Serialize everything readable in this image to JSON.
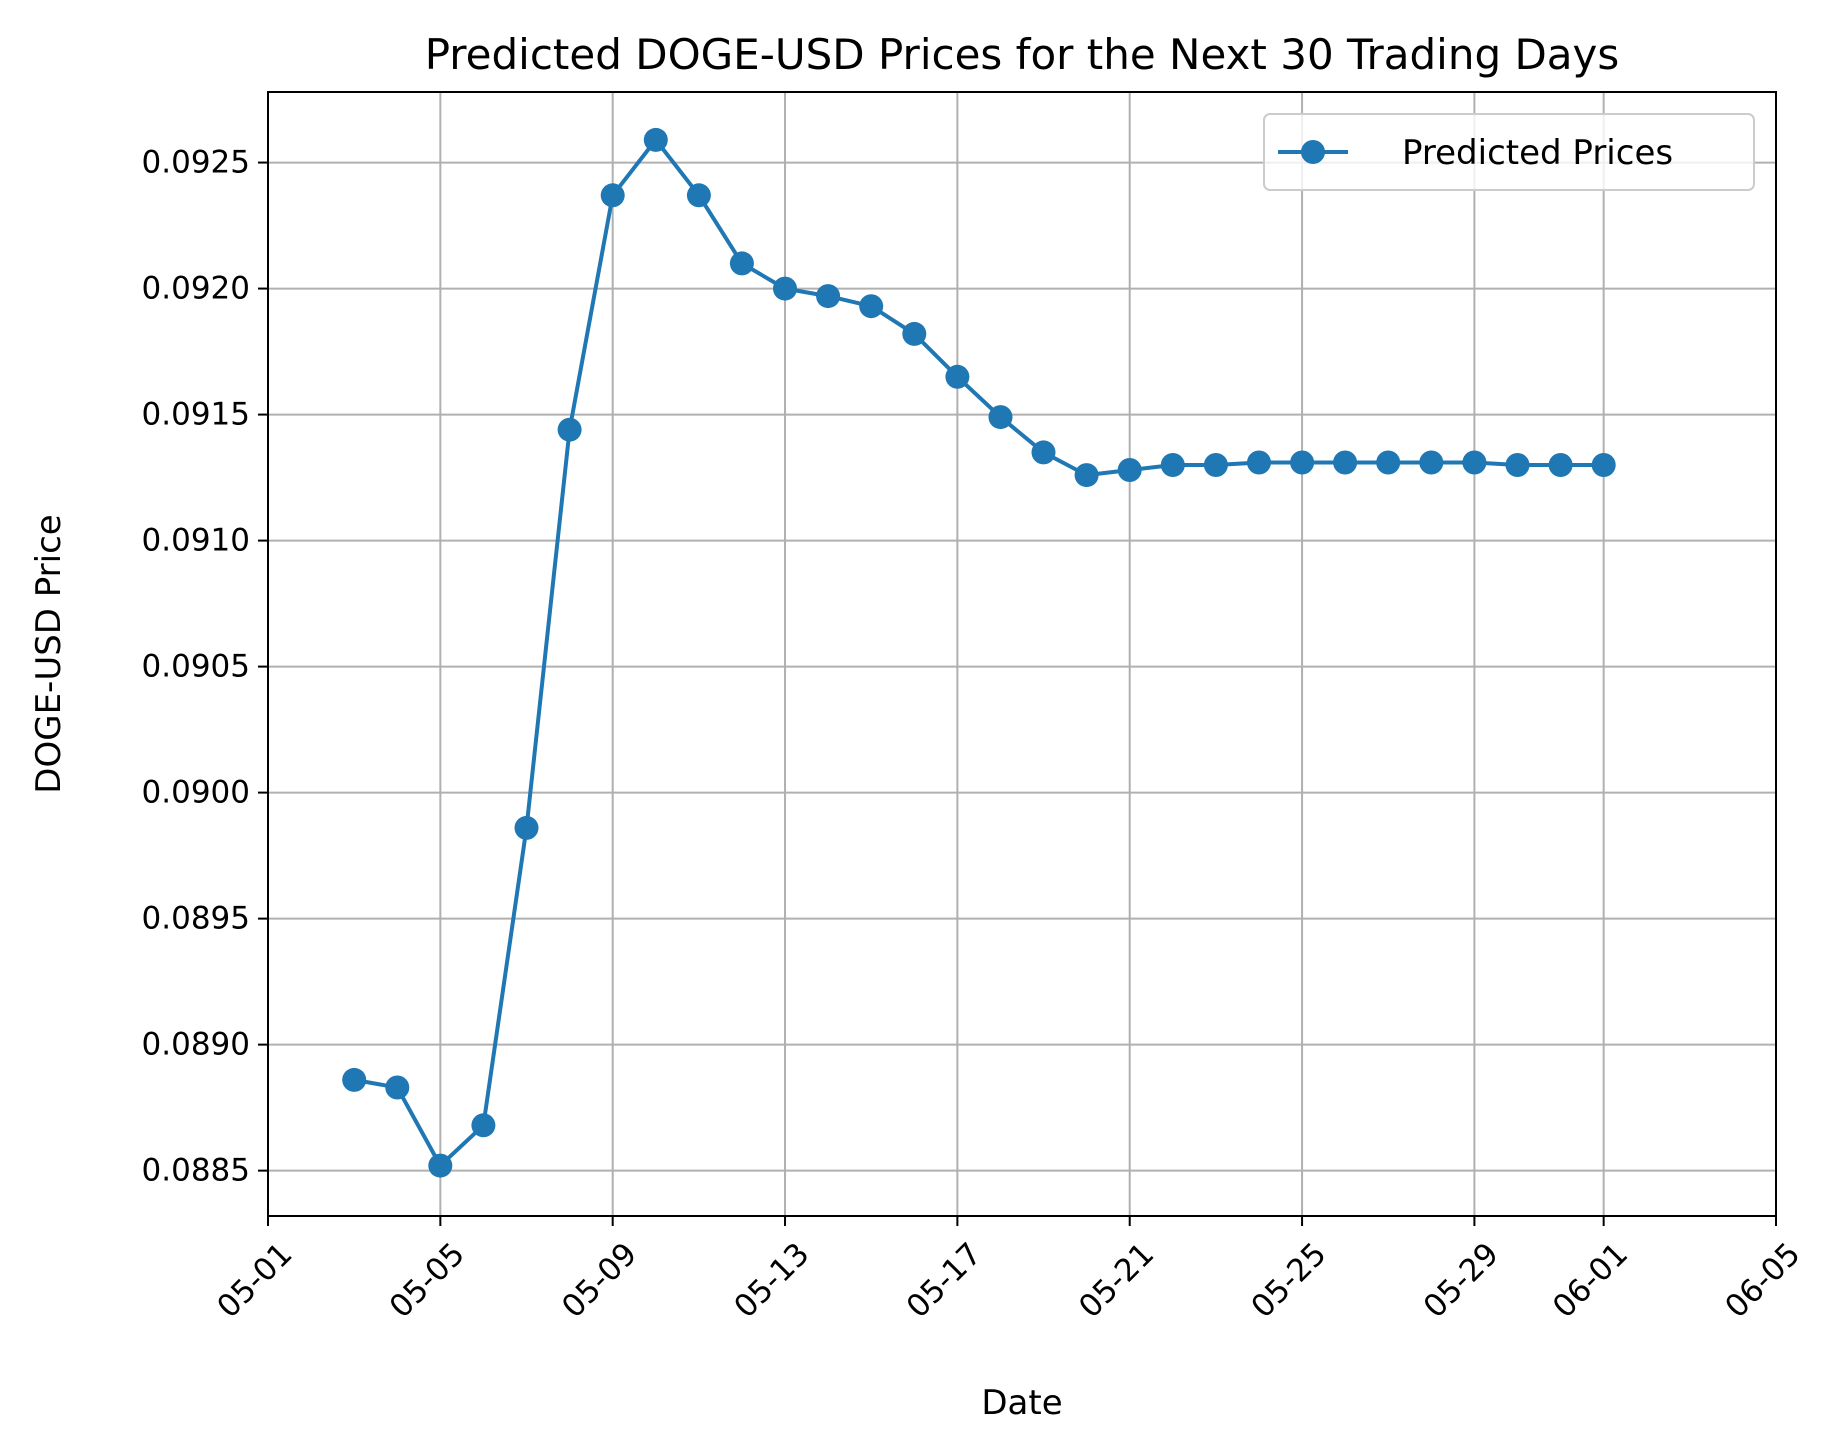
{
  "chart_data": {
    "type": "line",
    "title": "Predicted DOGE-USD Prices for the Next 30 Trading Days",
    "xlabel": "Date",
    "ylabel": "DOGE-USD Price",
    "x_tick_labels": [
      "05-01",
      "05-05",
      "05-09",
      "05-13",
      "05-17",
      "05-21",
      "05-25",
      "05-29",
      "06-01",
      "06-05"
    ],
    "y_tick_labels": [
      "0.0885",
      "0.0890",
      "0.0895",
      "0.0900",
      "0.0905",
      "0.0910",
      "0.0915",
      "0.0920",
      "0.0925"
    ],
    "y_ticks": [
      0.0885,
      0.089,
      0.0895,
      0.09,
      0.0905,
      0.091,
      0.0915,
      0.092,
      0.0925
    ],
    "xlim": [
      "05-01",
      "06-05"
    ],
    "ylim": [
      0.08832,
      0.09278
    ],
    "grid": true,
    "legend_position": "top-right",
    "color": "#1f77b4",
    "series": [
      {
        "name": "Predicted Prices",
        "x": [
          "05-03",
          "05-04",
          "05-05",
          "05-06",
          "05-07",
          "05-08",
          "05-09",
          "05-10",
          "05-11",
          "05-12",
          "05-13",
          "05-14",
          "05-15",
          "05-16",
          "05-17",
          "05-18",
          "05-19",
          "05-20",
          "05-21",
          "05-22",
          "05-23",
          "05-24",
          "05-25",
          "05-26",
          "05-27",
          "05-28",
          "05-29",
          "05-30",
          "05-31",
          "06-01"
        ],
        "values": [
          0.08886,
          0.08883,
          0.08852,
          0.08868,
          0.08986,
          0.09144,
          0.09237,
          0.09259,
          0.09237,
          0.0921,
          0.092,
          0.09197,
          0.09193,
          0.09182,
          0.09165,
          0.09149,
          0.09135,
          0.09126,
          0.09128,
          0.0913,
          0.0913,
          0.09131,
          0.09131,
          0.09131,
          0.09131,
          0.09131,
          0.09131,
          0.0913,
          0.0913,
          0.0913
        ]
      }
    ]
  }
}
